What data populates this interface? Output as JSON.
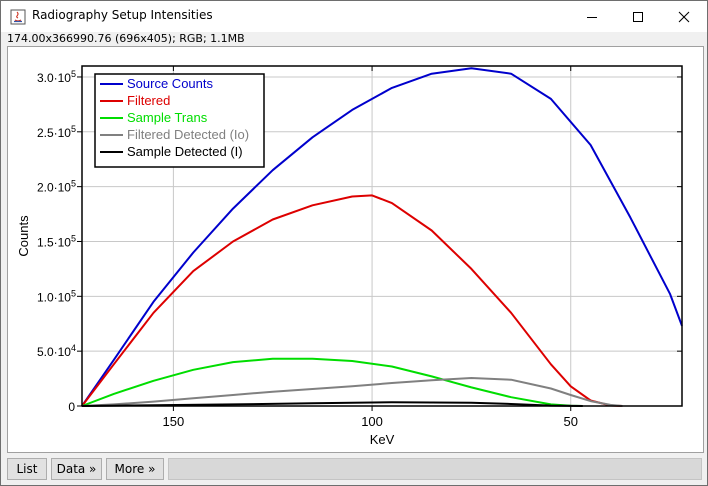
{
  "window": {
    "title": "Radiography Setup Intensities",
    "info": "174.00x366990.76   (696x405); RGB; 1.1MB",
    "minimize_label": "—",
    "maximize_label": "☐",
    "close_label": "✕"
  },
  "buttons": {
    "list": "List",
    "data": "Data »",
    "more": "More »"
  },
  "chart_data": {
    "type": "line",
    "xlabel": "KeV",
    "ylabel": "Counts",
    "xlim": [
      173,
      22
    ],
    "ylim": [
      0,
      310000
    ],
    "x_reversed": true,
    "grid": true,
    "legend_position": "top-left",
    "xticks": [
      {
        "value": 150,
        "label": "150"
      },
      {
        "value": 100,
        "label": "100"
      },
      {
        "value": 50,
        "label": "50"
      }
    ],
    "yticks": [
      {
        "value": 0,
        "label": "0"
      },
      {
        "value": 50000,
        "label": "5.0·10",
        "exp": "4"
      },
      {
        "value": 100000,
        "label": "1.0·10",
        "exp": "5"
      },
      {
        "value": 150000,
        "label": "1.5·10",
        "exp": "5"
      },
      {
        "value": 200000,
        "label": "2.0·10",
        "exp": "5"
      },
      {
        "value": 250000,
        "label": "2.5·10",
        "exp": "5"
      },
      {
        "value": 300000,
        "label": "3.0·10",
        "exp": "5"
      }
    ],
    "series": [
      {
        "name": "Source Counts",
        "color": "#0000cc",
        "x": [
          173,
          165,
          155,
          145,
          135,
          125,
          115,
          105,
          95,
          85,
          75,
          65,
          55,
          45,
          35,
          25,
          22
        ],
        "y": [
          0,
          42000,
          95000,
          140000,
          180000,
          215000,
          245000,
          270000,
          290000,
          303000,
          308000,
          303000,
          280000,
          238000,
          172000,
          102000,
          73000
        ]
      },
      {
        "name": "Filtered",
        "color": "#dd0000",
        "x": [
          173,
          165,
          155,
          145,
          135,
          125,
          115,
          105,
          100,
          95,
          85,
          75,
          65,
          55,
          50,
          45,
          40,
          37
        ],
        "y": [
          0,
          38000,
          85000,
          123000,
          150000,
          170000,
          183000,
          191000,
          192000,
          185000,
          160000,
          125000,
          85000,
          38000,
          18000,
          5000,
          500,
          0
        ]
      },
      {
        "name": "Sample Trans",
        "color": "#00dd00",
        "x": [
          173,
          165,
          155,
          145,
          135,
          125,
          115,
          105,
          95,
          85,
          75,
          65,
          55,
          50,
          47
        ],
        "y": [
          0,
          11000,
          23000,
          33000,
          40000,
          43000,
          43000,
          41000,
          36000,
          27000,
          17000,
          8000,
          1500,
          200,
          0
        ]
      },
      {
        "name": "Filtered Detected (Io)",
        "color": "#808080",
        "x": [
          173,
          165,
          155,
          145,
          135,
          125,
          115,
          105,
          95,
          85,
          75,
          65,
          55,
          50,
          45,
          40,
          37
        ],
        "y": [
          0,
          1500,
          4000,
          7000,
          10000,
          13000,
          15500,
          18000,
          21000,
          23500,
          25500,
          24000,
          16000,
          10000,
          4500,
          1000,
          0
        ]
      },
      {
        "name": "Sample Detected (I)",
        "color": "#000000",
        "x": [
          173,
          155,
          135,
          115,
          95,
          75,
          65,
          55,
          47
        ],
        "y": [
          0,
          700,
          1500,
          2500,
          3500,
          3000,
          1800,
          400,
          0
        ]
      }
    ]
  }
}
